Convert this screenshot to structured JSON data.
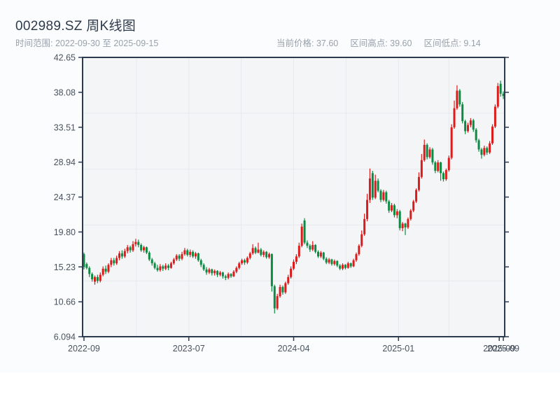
{
  "header": {
    "title": "002989.SZ 周K线图",
    "subtitle": "时间范围: 2022-09-30 至 2025-09-15",
    "stats": [
      {
        "name": "current-price",
        "text": "当前价格: 37.60"
      },
      {
        "name": "range-high",
        "text": "区间高点: 39.60"
      },
      {
        "name": "range-low",
        "text": "区间低点: 9.14"
      }
    ]
  },
  "chart_data": {
    "type": "candlestick",
    "title": "002989.SZ 周K线图",
    "symbol": "002989.SZ",
    "period": "weekly",
    "date_range": {
      "start": "2022-09-30",
      "end": "2025-09-15"
    },
    "current_price": 37.6,
    "range_high": 39.6,
    "range_low": 9.14,
    "xlabel": "",
    "ylabel": "",
    "grid": true,
    "legend": "none",
    "ylim": [
      6.094,
      42.65
    ],
    "y_ticks": [
      {
        "label": "42.65",
        "value": 42.65
      },
      {
        "label": "38.08",
        "value": 38.08
      },
      {
        "label": "33.51",
        "value": 33.51
      },
      {
        "label": "28.94",
        "value": 28.94
      },
      {
        "label": "24.37",
        "value": 24.37
      },
      {
        "label": "19.80",
        "value": 19.8
      },
      {
        "label": "15.23",
        "value": 15.23
      },
      {
        "label": "10.66",
        "value": 10.66
      },
      {
        "label": "6.094",
        "value": 6.094
      }
    ],
    "x_ticks": [
      {
        "label": "2022-09",
        "week": 0.5
      },
      {
        "label": "2023-07",
        "week": 39
      },
      {
        "label": "2024-04",
        "week": 77.5
      },
      {
        "label": "2025-01",
        "week": 116
      },
      {
        "label": "2025-09",
        "week": 153
      },
      {
        "label": "2025-09",
        "week": 154.5
      }
    ],
    "up_color": "#dc1c1c",
    "down_color": "#0e8b43",
    "plot_bg": "#f4f5f7",
    "grid_color": "#e7e9ed",
    "axis_color": "#2c3a4e",
    "tick_color": "#49535f",
    "candles_ohlc": [
      [
        16.9,
        17.1,
        14.9,
        15.2
      ],
      [
        15.6,
        15.8,
        14.9,
        15.1
      ],
      [
        15.1,
        15.3,
        13.9,
        14.3
      ],
      [
        14.3,
        14.5,
        13.3,
        13.6
      ],
      [
        13.3,
        14.1,
        12.9,
        13.9
      ],
      [
        13.9,
        14.2,
        13.1,
        13.4
      ],
      [
        13.4,
        14.5,
        13.2,
        14.2
      ],
      [
        14.2,
        15.3,
        14.0,
        15.0
      ],
      [
        15.0,
        15.4,
        14.3,
        14.6
      ],
      [
        14.6,
        15.7,
        14.4,
        15.5
      ],
      [
        15.5,
        16.4,
        15.2,
        16.1
      ],
      [
        16.1,
        16.4,
        15.4,
        15.7
      ],
      [
        15.7,
        16.7,
        15.5,
        16.4
      ],
      [
        16.4,
        17.3,
        16.1,
        17.0
      ],
      [
        17.0,
        17.4,
        16.3,
        16.6
      ],
      [
        16.6,
        17.6,
        16.4,
        17.3
      ],
      [
        17.3,
        18.1,
        17.0,
        17.8
      ],
      [
        17.8,
        18.0,
        17.1,
        17.4
      ],
      [
        17.4,
        18.6,
        17.2,
        18.2
      ],
      [
        18.2,
        18.9,
        17.9,
        18.5
      ],
      [
        18.5,
        18.8,
        17.8,
        18.1
      ],
      [
        18.1,
        18.3,
        17.2,
        17.4
      ],
      [
        17.4,
        18.0,
        17.1,
        17.8
      ],
      [
        17.8,
        17.9,
        16.9,
        17.1
      ],
      [
        17.1,
        17.3,
        16.0,
        16.2
      ],
      [
        16.2,
        16.4,
        15.4,
        15.7
      ],
      [
        15.7,
        15.9,
        14.9,
        15.1
      ],
      [
        15.1,
        15.5,
        14.6,
        14.8
      ],
      [
        14.8,
        15.6,
        14.6,
        15.3
      ],
      [
        15.3,
        15.5,
        14.7,
        15.0
      ],
      [
        15.0,
        15.7,
        14.8,
        15.4
      ],
      [
        15.4,
        15.6,
        14.8,
        15.1
      ],
      [
        15.1,
        15.9,
        15.0,
        15.7
      ],
      [
        15.7,
        16.4,
        15.5,
        16.2
      ],
      [
        16.2,
        16.9,
        16.0,
        16.7
      ],
      [
        16.7,
        16.9,
        16.0,
        16.3
      ],
      [
        16.3,
        17.2,
        16.1,
        16.9
      ],
      [
        16.9,
        17.7,
        16.7,
        17.4
      ],
      [
        17.4,
        17.6,
        16.6,
        16.8
      ],
      [
        16.8,
        17.5,
        16.5,
        17.2
      ],
      [
        17.2,
        17.4,
        16.4,
        16.6
      ],
      [
        16.6,
        17.2,
        16.3,
        17.0
      ],
      [
        17.0,
        17.1,
        15.9,
        16.1
      ],
      [
        16.1,
        16.3,
        15.2,
        15.5
      ],
      [
        15.5,
        15.7,
        14.7,
        14.9
      ],
      [
        14.9,
        15.2,
        14.2,
        14.5
      ],
      [
        14.5,
        15.1,
        14.3,
        14.9
      ],
      [
        14.9,
        15.0,
        14.1,
        14.4
      ],
      [
        14.4,
        14.9,
        14.1,
        14.7
      ],
      [
        14.7,
        14.8,
        13.9,
        14.2
      ],
      [
        14.2,
        14.7,
        14.0,
        14.5
      ],
      [
        14.5,
        14.6,
        13.7,
        14.0
      ],
      [
        14.0,
        14.2,
        13.5,
        13.8
      ],
      [
        13.8,
        14.5,
        13.6,
        14.3
      ],
      [
        14.3,
        14.4,
        13.8,
        14.0
      ],
      [
        14.0,
        14.8,
        13.9,
        14.6
      ],
      [
        14.6,
        15.3,
        14.4,
        15.1
      ],
      [
        15.1,
        15.9,
        14.9,
        15.7
      ],
      [
        15.7,
        16.3,
        15.5,
        16.1
      ],
      [
        16.1,
        16.3,
        15.5,
        15.8
      ],
      [
        15.8,
        16.6,
        15.6,
        16.4
      ],
      [
        16.4,
        17.2,
        16.2,
        17.0
      ],
      [
        17.0,
        18.2,
        16.8,
        17.7
      ],
      [
        17.7,
        17.9,
        16.9,
        17.1
      ],
      [
        17.1,
        18.4,
        17.0,
        17.5
      ],
      [
        17.5,
        17.7,
        16.6,
        16.8
      ],
      [
        16.8,
        17.4,
        16.5,
        17.2
      ],
      [
        17.2,
        17.3,
        16.3,
        16.5
      ],
      [
        16.5,
        17.1,
        16.3,
        16.9
      ],
      [
        16.9,
        17.0,
        12.0,
        12.7
      ],
      [
        12.7,
        12.9,
        9.14,
        9.8
      ],
      [
        9.8,
        11.7,
        9.6,
        11.4
      ],
      [
        11.4,
        12.9,
        11.2,
        12.6
      ],
      [
        12.6,
        12.8,
        11.6,
        11.9
      ],
      [
        11.9,
        13.3,
        11.7,
        13.1
      ],
      [
        13.1,
        14.2,
        12.9,
        13.9
      ],
      [
        13.9,
        15.3,
        13.7,
        15.0
      ],
      [
        15.0,
        16.2,
        14.8,
        15.9
      ],
      [
        15.9,
        16.9,
        15.6,
        16.6
      ],
      [
        16.6,
        18.4,
        16.4,
        18.0
      ],
      [
        18.0,
        20.9,
        17.8,
        20.5
      ],
      [
        21.3,
        21.6,
        18.2,
        18.4
      ],
      [
        18.4,
        18.7,
        17.7,
        18.0
      ],
      [
        18.0,
        18.2,
        17.2,
        17.5
      ],
      [
        17.5,
        18.6,
        17.3,
        18.1
      ],
      [
        18.1,
        18.2,
        17.0,
        17.2
      ],
      [
        17.2,
        17.4,
        16.4,
        16.6
      ],
      [
        16.6,
        17.3,
        16.4,
        17.1
      ],
      [
        17.1,
        17.2,
        16.1,
        16.3
      ],
      [
        16.3,
        16.5,
        15.6,
        15.8
      ],
      [
        15.8,
        16.4,
        15.6,
        16.2
      ],
      [
        16.2,
        16.3,
        15.4,
        15.6
      ],
      [
        15.6,
        16.2,
        15.4,
        16.0
      ],
      [
        16.0,
        16.1,
        15.2,
        15.4
      ],
      [
        15.4,
        15.6,
        14.8,
        15.0
      ],
      [
        15.0,
        15.7,
        14.8,
        15.5
      ],
      [
        15.5,
        15.6,
        14.9,
        15.1
      ],
      [
        15.1,
        15.9,
        15.0,
        15.7
      ],
      [
        15.7,
        15.8,
        15.1,
        15.3
      ],
      [
        15.3,
        16.3,
        15.2,
        16.1
      ],
      [
        16.1,
        17.1,
        15.9,
        16.9
      ],
      [
        16.9,
        18.2,
        16.7,
        18.0
      ],
      [
        18.0,
        20.0,
        17.8,
        19.5
      ],
      [
        19.5,
        22.2,
        19.3,
        21.5
      ],
      [
        21.5,
        24.8,
        21.2,
        24.0
      ],
      [
        24.0,
        28.1,
        23.6,
        26.8
      ],
      [
        27.5,
        27.8,
        24.0,
        24.3
      ],
      [
        24.3,
        27.3,
        24.1,
        26.5
      ],
      [
        26.5,
        26.8,
        25.0,
        25.2
      ],
      [
        25.2,
        25.4,
        23.7,
        24.0
      ],
      [
        24.0,
        25.3,
        23.8,
        25.0
      ],
      [
        25.0,
        25.2,
        23.5,
        23.8
      ],
      [
        23.8,
        24.0,
        22.3,
        22.6
      ],
      [
        22.6,
        23.6,
        22.4,
        23.3
      ],
      [
        23.3,
        23.5,
        21.7,
        22.0
      ],
      [
        22.0,
        22.8,
        21.6,
        22.5
      ],
      [
        22.5,
        22.7,
        20.0,
        20.3
      ],
      [
        20.3,
        21.1,
        19.9,
        20.9
      ],
      [
        20.9,
        21.0,
        19.4,
        20.4
      ],
      [
        20.4,
        21.7,
        20.2,
        21.5
      ],
      [
        21.5,
        22.8,
        21.3,
        22.6
      ],
      [
        22.6,
        24.0,
        22.4,
        23.8
      ],
      [
        23.8,
        25.5,
        23.6,
        25.3
      ],
      [
        25.3,
        27.6,
        25.1,
        27.0
      ],
      [
        27.0,
        30.0,
        26.8,
        29.2
      ],
      [
        29.2,
        31.9,
        29.0,
        31.2
      ],
      [
        31.2,
        31.4,
        29.3,
        29.6
      ],
      [
        29.6,
        30.9,
        29.4,
        30.6
      ],
      [
        30.6,
        30.8,
        28.6,
        28.9
      ],
      [
        28.9,
        29.1,
        27.5,
        27.8
      ],
      [
        27.8,
        29.2,
        27.6,
        28.9
      ],
      [
        28.9,
        29.0,
        26.5,
        27.5
      ],
      [
        27.5,
        27.7,
        26.4,
        26.7
      ],
      [
        26.7,
        28.1,
        26.5,
        27.9
      ],
      [
        27.9,
        29.8,
        27.7,
        29.5
      ],
      [
        29.5,
        33.9,
        29.3,
        33.5
      ],
      [
        33.5,
        37.0,
        33.3,
        36.0
      ],
      [
        36.0,
        39.0,
        35.8,
        38.3
      ],
      [
        38.3,
        38.5,
        36.2,
        36.5
      ],
      [
        36.5,
        36.8,
        34.0,
        34.3
      ],
      [
        34.3,
        34.5,
        32.6,
        33.0
      ],
      [
        33.0,
        34.1,
        32.8,
        33.8
      ],
      [
        33.8,
        34.7,
        33.5,
        34.4
      ],
      [
        34.4,
        34.6,
        32.9,
        33.2
      ],
      [
        33.2,
        33.4,
        31.5,
        31.8
      ],
      [
        31.8,
        32.0,
        30.3,
        30.6
      ],
      [
        30.6,
        30.8,
        29.4,
        29.9
      ],
      [
        29.9,
        31.1,
        29.7,
        30.8
      ],
      [
        30.8,
        31.0,
        29.9,
        30.2
      ],
      [
        30.2,
        31.7,
        30.0,
        31.4
      ],
      [
        31.4,
        33.9,
        31.2,
        33.6
      ],
      [
        33.6,
        36.5,
        33.4,
        36.2
      ],
      [
        36.2,
        39.3,
        36.0,
        38.9
      ],
      [
        39.2,
        39.6,
        37.5,
        37.9
      ],
      [
        37.9,
        38.2,
        37.2,
        37.6
      ]
    ]
  }
}
